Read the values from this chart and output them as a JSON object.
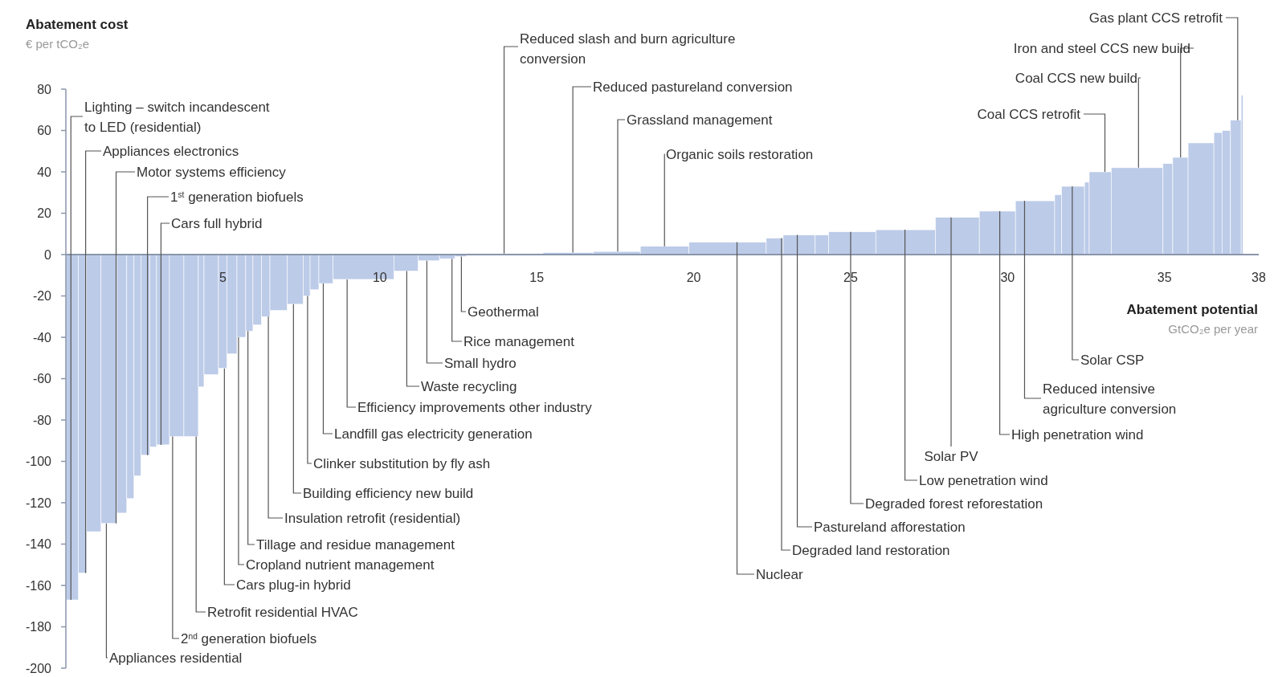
{
  "chart_data": {
    "type": "histogram",
    "ylabel": "Abatement cost",
    "xlabel": "Abatement potential",
    "color": "#bccbe8",
    "xlim": [
      0,
      38
    ],
    "xticks": [
      5,
      10,
      15,
      20,
      25,
      30,
      35,
      38
    ],
    "ylim": [
      -200,
      80
    ],
    "yticks": [
      -200,
      -180,
      -160,
      -140,
      -120,
      -100,
      -80,
      -60,
      -40,
      -20,
      0,
      20,
      40,
      60,
      80
    ],
    "bins": [
      0,
      0.4,
      0.66,
      1.12,
      1.62,
      1.94,
      2.17,
      2.39,
      2.67,
      2.89,
      3.3,
      3.76,
      4.22,
      4.4,
      4.86,
      5.13,
      5.45,
      5.73,
      5.96,
      6.23,
      6.5,
      7.05,
      7.56,
      7.78,
      8.06,
      8.51,
      10.45,
      11.22,
      11.9,
      12.4,
      12.76,
      15.2,
      16.8,
      18.3,
      19.85,
      22.31,
      22.85,
      23.87,
      24.3,
      25.8,
      27.7,
      29.1,
      30.25,
      31.5,
      31.72,
      32.45,
      32.6,
      33.3,
      34.95,
      35.26,
      35.75,
      36.57,
      36.83,
      37.1,
      37.44,
      37.5
    ],
    "values": [
      -167,
      -154,
      -134,
      -130,
      -125,
      -118,
      -107,
      -97,
      -93,
      -92,
      -88,
      -88,
      -64,
      -58,
      -55,
      -48,
      -40,
      -37,
      -34,
      -30,
      -27,
      -24,
      -20,
      -17,
      -14,
      -12,
      -8,
      -3,
      -2,
      -1,
      0.5,
      1,
      1.5,
      4,
      6,
      8,
      9.5,
      9.5,
      11,
      12,
      18,
      21,
      26,
      29,
      33,
      35,
      40,
      42,
      44,
      47,
      54,
      59,
      60,
      65,
      77
    ],
    "annotations": [
      "€ per tCO₂e",
      "GtCO₂e per year",
      {
        "text": "Lighting – switch incandescent to LED (residential)",
        "x": 0.16,
        "y": -167
      },
      {
        "text": "Appliances electronics",
        "x": 0.63,
        "y": -154
      },
      {
        "text": "Motor systems efficiency",
        "x": 1.6,
        "y": -130
      },
      {
        "text": "1$^{st}$ generation biofuels",
        "x": 2.6,
        "y": -97
      },
      {
        "text": "Cars full hybrid",
        "x": 3.03,
        "y": -92
      },
      {
        "text": "Appliances residential",
        "x": 1.29,
        "y": -130
      },
      {
        "text": "2$^{nd}$ generation biofuels",
        "x": 3.4,
        "y": -88
      },
      {
        "text": "Retrofit residential HVAC",
        "x": 4.15,
        "y": -88
      },
      {
        "text": "Cars plug-in hybrid",
        "x": 5.05,
        "y": -55
      },
      {
        "text": "Cropland nutrient management",
        "x": 5.5,
        "y": -40
      },
      {
        "text": "Tillage and residue management",
        "x": 5.8,
        "y": -37
      },
      {
        "text": "Insulation retrofit (residential)",
        "x": 6.45,
        "y": -30
      },
      {
        "text": "Building efficiency new build",
        "x": 7.25,
        "y": -24
      },
      {
        "text": "Clinker substitution by fly ash",
        "x": 7.7,
        "y": -20
      },
      {
        "text": "Landfill gas electricity generation",
        "x": 8.2,
        "y": -14
      },
      {
        "text": "Efficiency improvements other industry",
        "x": 8.96,
        "y": -12
      },
      {
        "text": "Waste recycling",
        "x": 10.86,
        "y": -8
      },
      {
        "text": "Small hydro",
        "x": 11.5,
        "y": -3
      },
      {
        "text": "Rice management",
        "x": 12.3,
        "y": -2
      },
      {
        "text": "Geothermal",
        "x": 12.6,
        "y": -1
      },
      {
        "text": "Reduced slash and burn agriculture conversion",
        "x": 13.96,
        "y": 0.5
      },
      {
        "text": "Reduced pastureland conversion",
        "x": 16.15,
        "y": 1
      },
      {
        "text": "Grassland management",
        "x": 17.58,
        "y": 1.5
      },
      {
        "text": "Organic soils restoration",
        "x": 19.07,
        "y": 4
      },
      {
        "text": "Nuclear",
        "x": 21.38,
        "y": 6
      },
      {
        "text": "Degraded land restoration",
        "x": 22.8,
        "y": 8
      },
      {
        "text": "Pastureland afforestation",
        "x": 23.3,
        "y": 9.5
      },
      {
        "text": "Degraded forest reforestation",
        "x": 25.0,
        "y": 11
      },
      {
        "text": "Low penetration wind",
        "x": 26.73,
        "y": 12
      },
      {
        "text": "Solar PV",
        "x": 28.2,
        "y": 18
      },
      {
        "text": "High penetration wind",
        "x": 29.75,
        "y": 21
      },
      {
        "text": "Reduced intensive agriculture conversion",
        "x": 30.54,
        "y": 26
      },
      {
        "text": "Solar CSP",
        "x": 32.06,
        "y": 33
      },
      {
        "text": "Coal CCS retrofit",
        "x": 33.1,
        "y": 40
      },
      {
        "text": "Coal CCS new build",
        "x": 34.17,
        "y": 42
      },
      {
        "text": "Iron and steel CCS new build",
        "x": 35.51,
        "y": 47
      },
      {
        "text": "Gas plant CCS retrofit",
        "x": 37.33,
        "y": 65
      }
    ]
  }
}
